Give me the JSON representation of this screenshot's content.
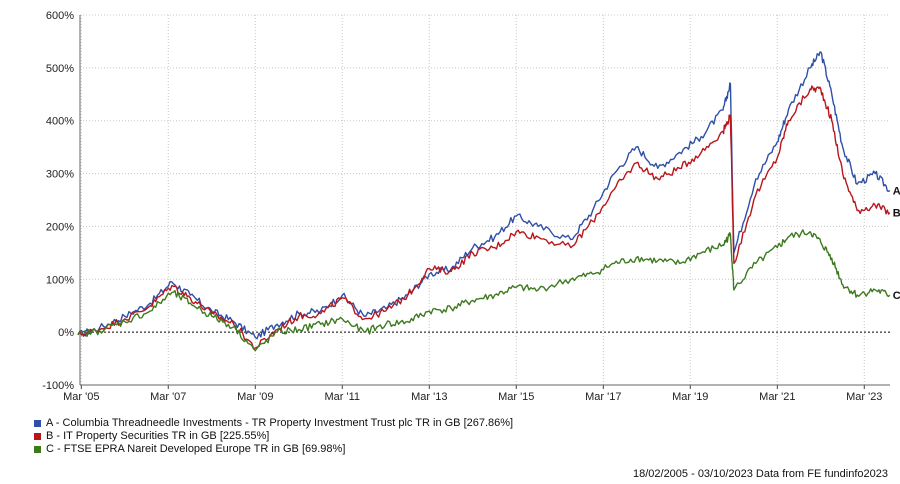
{
  "chart_data": {
    "type": "line",
    "x_range": [
      "2005-02-18",
      "2023-10-03"
    ],
    "ylim": [
      -100,
      600
    ],
    "y_ticks": [
      "-100%",
      "0%",
      "100%",
      "200%",
      "300%",
      "400%",
      "500%",
      "600%"
    ],
    "x_ticks": [
      "Mar '05",
      "Mar '07",
      "Mar '09",
      "Mar '11",
      "Mar '13",
      "Mar '15",
      "Mar '17",
      "Mar '19",
      "Mar '21",
      "Mar '23"
    ],
    "grid": true,
    "series": [
      {
        "name": "A - Columbia Threadneedle Investments - TR Property Investment Trust plc TR in GB [267.86%]",
        "end_label": "A",
        "color": "#2f4fa8",
        "x": [
          "2005-02",
          "2005-08",
          "2006-03",
          "2006-10",
          "2007-04",
          "2007-09",
          "2008-03",
          "2008-09",
          "2009-03",
          "2009-09",
          "2010-03",
          "2010-09",
          "2011-03",
          "2011-09",
          "2012-03",
          "2012-09",
          "2013-03",
          "2013-09",
          "2014-03",
          "2014-09",
          "2015-03",
          "2015-09",
          "2016-06",
          "2016-12",
          "2017-06",
          "2017-12",
          "2018-06",
          "2018-12",
          "2019-06",
          "2019-12",
          "2020-02",
          "2020-03",
          "2020-09",
          "2021-03",
          "2021-06",
          "2021-12",
          "2022-03",
          "2022-06",
          "2022-09",
          "2023-01",
          "2023-06",
          "2023-10"
        ],
        "values": [
          -5,
          8,
          30,
          55,
          95,
          70,
          40,
          20,
          -10,
          15,
          35,
          40,
          70,
          30,
          45,
          70,
          110,
          120,
          160,
          180,
          220,
          200,
          175,
          230,
          300,
          350,
          310,
          340,
          370,
          420,
          470,
          150,
          290,
          360,
          420,
          500,
          530,
          450,
          350,
          280,
          300,
          268
        ]
      },
      {
        "name": "B - IT Property Securities TR in GB [225.55%]",
        "end_label": "B",
        "color": "#b8161c",
        "x": [
          "2005-02",
          "2005-08",
          "2006-03",
          "2006-10",
          "2007-04",
          "2007-09",
          "2008-03",
          "2008-09",
          "2009-03",
          "2009-09",
          "2010-03",
          "2010-09",
          "2011-03",
          "2011-09",
          "2012-03",
          "2012-09",
          "2013-03",
          "2013-09",
          "2014-03",
          "2014-09",
          "2015-03",
          "2015-09",
          "2016-06",
          "2016-12",
          "2017-06",
          "2017-12",
          "2018-06",
          "2018-12",
          "2019-06",
          "2019-12",
          "2020-02",
          "2020-03",
          "2020-09",
          "2021-03",
          "2021-06",
          "2021-12",
          "2022-03",
          "2022-06",
          "2022-09",
          "2023-01",
          "2023-06",
          "2023-10"
        ],
        "values": [
          -5,
          5,
          25,
          50,
          88,
          65,
          35,
          15,
          -30,
          5,
          30,
          35,
          65,
          25,
          40,
          70,
          120,
          115,
          150,
          160,
          190,
          180,
          160,
          210,
          270,
          320,
          290,
          310,
          340,
          380,
          410,
          130,
          260,
          330,
          400,
          460,
          460,
          400,
          300,
          230,
          240,
          226
        ]
      },
      {
        "name": "C - FTSE EPRA Nareit Developed Europe TR in GB [69.98%]",
        "end_label": "C",
        "color": "#3d7a1e",
        "x": [
          "2005-02",
          "2005-08",
          "2006-03",
          "2006-10",
          "2007-04",
          "2007-09",
          "2008-03",
          "2008-09",
          "2009-03",
          "2009-09",
          "2010-03",
          "2010-09",
          "2011-03",
          "2011-09",
          "2012-03",
          "2012-09",
          "2013-03",
          "2013-09",
          "2014-03",
          "2014-09",
          "2015-03",
          "2015-09",
          "2016-06",
          "2016-12",
          "2017-06",
          "2017-12",
          "2018-06",
          "2018-12",
          "2019-06",
          "2019-12",
          "2020-02",
          "2020-03",
          "2020-09",
          "2021-03",
          "2021-06",
          "2021-12",
          "2022-03",
          "2022-06",
          "2022-09",
          "2023-01",
          "2023-06",
          "2023-10"
        ],
        "values": [
          -5,
          3,
          20,
          40,
          75,
          55,
          30,
          10,
          -35,
          0,
          5,
          15,
          25,
          0,
          15,
          20,
          40,
          45,
          60,
          70,
          85,
          80,
          100,
          110,
          130,
          140,
          135,
          130,
          150,
          165,
          185,
          80,
          130,
          160,
          180,
          190,
          170,
          140,
          90,
          70,
          80,
          70
        ]
      }
    ],
    "footer": "18/02/2005 - 03/10/2023 Data from FE fundinfo2023"
  }
}
